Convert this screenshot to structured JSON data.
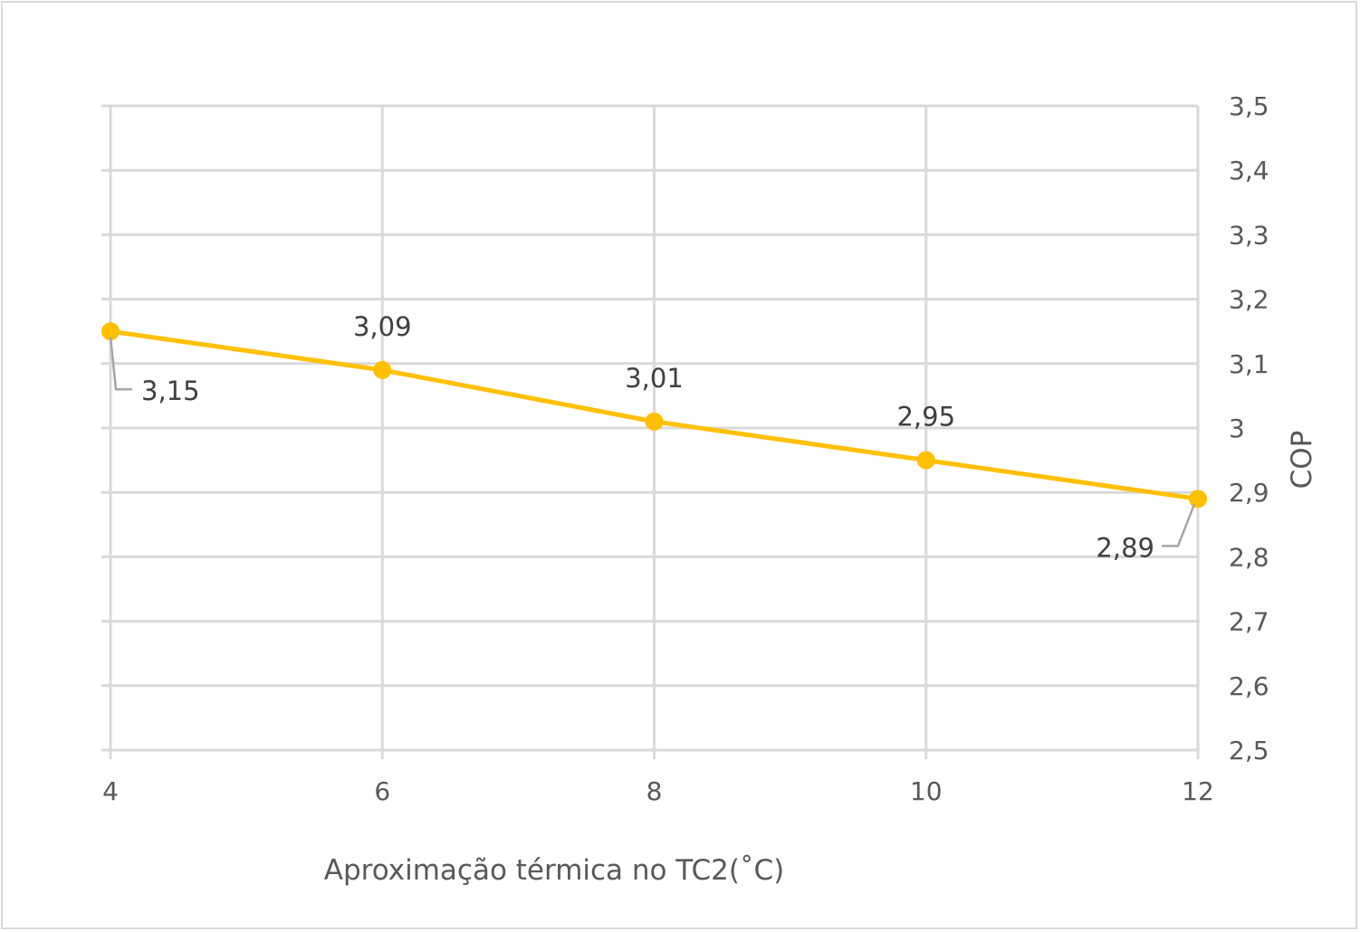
{
  "chart_data": {
    "type": "line",
    "title": "",
    "xlabel": "Aproximação térmica no TC2(˚C)",
    "ylabel": "COP",
    "x": [
      4,
      6,
      8,
      10,
      12
    ],
    "x_tick_labels": [
      "4",
      "6",
      "8",
      "10",
      "12"
    ],
    "y_tick_labels": [
      "2,5",
      "2,6",
      "2,7",
      "2,8",
      "2,9",
      "3",
      "3,1",
      "3,2",
      "3,3",
      "3,4",
      "3,5"
    ],
    "y_ticks": [
      2.5,
      2.6,
      2.7,
      2.8,
      2.9,
      3.0,
      3.1,
      3.2,
      3.3,
      3.4,
      3.5
    ],
    "xlim": [
      4,
      12
    ],
    "ylim": [
      2.5,
      3.5
    ],
    "y_axis_side": "right",
    "grid": true,
    "legend": "none",
    "series": [
      {
        "values": [
          3.15,
          3.09,
          3.01,
          2.95,
          2.89
        ],
        "data_labels": [
          "3,15",
          "3,09",
          "3,01",
          "2,95",
          "2,89"
        ],
        "color": "#ffc000"
      }
    ],
    "colors": {
      "gridline": "#d9d9d9",
      "tick_text": "#595959",
      "label_text": "#404040",
      "leader_line": "#a6a6a6"
    }
  }
}
